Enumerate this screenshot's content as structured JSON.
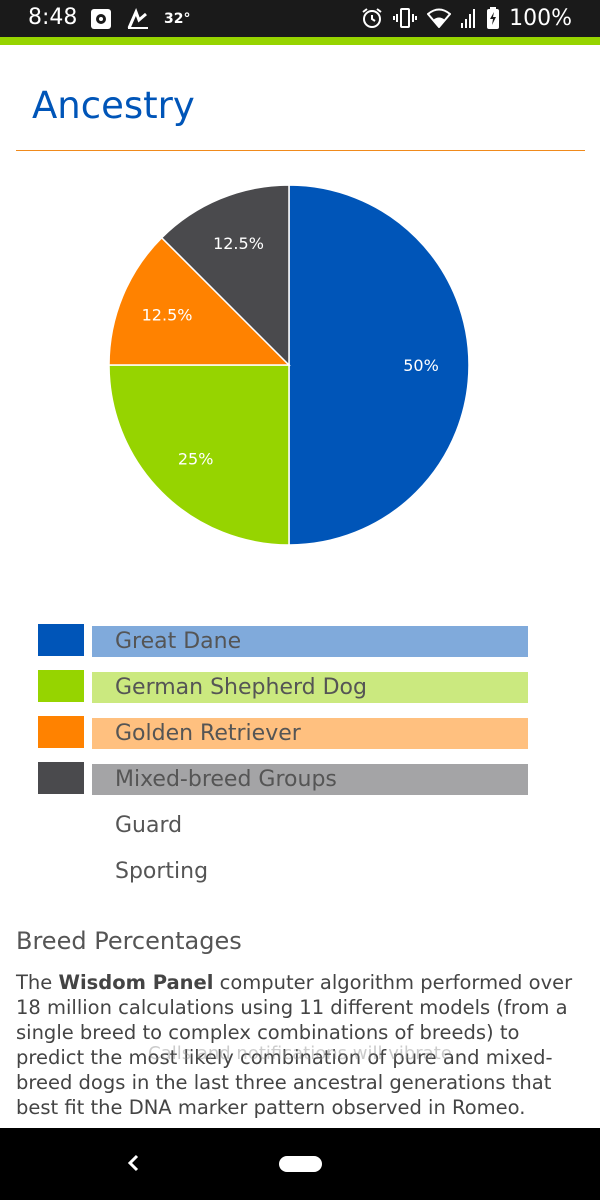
{
  "status_bar": {
    "time": "8:48",
    "temperature": "32°",
    "battery": "100%",
    "icons": [
      "gear-notification-icon",
      "weather-icon",
      "alarm-icon",
      "vibrate-icon",
      "wifi-icon",
      "signal-icon",
      "battery-charging-icon"
    ]
  },
  "header": {
    "title": "Ancestry",
    "accent_color": "#96d400",
    "title_color": "#0055b8",
    "rule_color": "#f08a1b"
  },
  "chart_data": {
    "type": "pie",
    "start": "top",
    "direction": "clockwise",
    "slices": [
      {
        "label": "Great Dane",
        "value": 50,
        "display": "50%",
        "color": "#0055b8"
      },
      {
        "label": "German Shepherd Dog",
        "value": 25,
        "display": "25%",
        "color": "#96d400"
      },
      {
        "label": "Golden Retriever",
        "value": 12.5,
        "display": "12.5%",
        "color": "#ff8200"
      },
      {
        "label": "Mixed-breed Groups",
        "value": 12.5,
        "display": "12.5%",
        "color": "#4a4a4d"
      }
    ]
  },
  "legend": {
    "items": [
      {
        "label": "Great Dane",
        "swatch": "#0055b8",
        "bar": "#80aadb"
      },
      {
        "label": "German Shepherd Dog",
        "swatch": "#96d400",
        "bar": "#cbe97f"
      },
      {
        "label": "Golden Retriever",
        "swatch": "#ff8200",
        "bar": "#ffc07f"
      },
      {
        "label": "Mixed-breed Groups",
        "swatch": "#4a4a4d",
        "bar": "#a4a4a6"
      }
    ],
    "groups": [
      "Guard",
      "Sporting"
    ]
  },
  "breed_section": {
    "title": "Breed Percentages",
    "intro": "The ",
    "brand": "Wisdom Panel",
    "body": " computer algorithm performed over 18 million calculations using 11 different models (from a single breed to complex combinations of breeds) to predict the most likely combination of pure and mixed-breed dogs in the last three ancestral generations that best fit the DNA marker pattern observed in Romeo."
  },
  "toast": "Calls and notifications will vibrate"
}
